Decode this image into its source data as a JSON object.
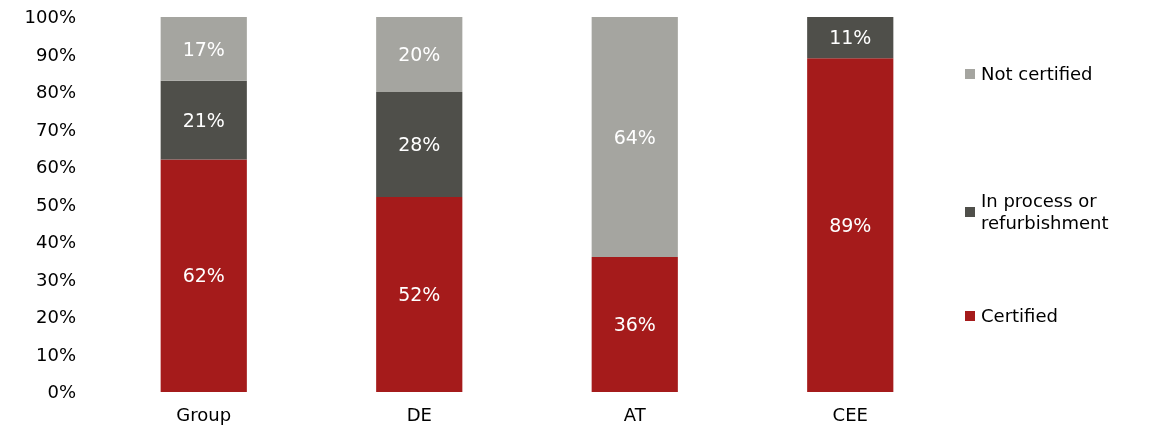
{
  "chart_data": {
    "type": "bar",
    "stacked": true,
    "categories": [
      "Group",
      "DE",
      "AT",
      "CEE"
    ],
    "ylim": [
      0,
      100
    ],
    "yticks": [
      {
        "value": 0,
        "label": "0%"
      },
      {
        "value": 10,
        "label": "10%"
      },
      {
        "value": 20,
        "label": "20%"
      },
      {
        "value": 30,
        "label": "30%"
      },
      {
        "value": 40,
        "label": "40%"
      },
      {
        "value": 50,
        "label": "50%"
      },
      {
        "value": 60,
        "label": "60%"
      },
      {
        "value": 70,
        "label": "70%"
      },
      {
        "value": 80,
        "label": "80%"
      },
      {
        "value": 90,
        "label": "90%"
      },
      {
        "value": 100,
        "label": "100%"
      }
    ],
    "series": [
      {
        "name": "Certified",
        "color": "#a51b1b",
        "values": [
          62,
          52,
          36,
          89
        ],
        "value_labels": [
          "62%",
          "52%",
          "36%",
          "89%"
        ]
      },
      {
        "name": "In process or refurbishment",
        "color": "#4f4f4a",
        "values": [
          21,
          28,
          null,
          11
        ],
        "value_labels": [
          "21%",
          "28%",
          null,
          "11%"
        ]
      },
      {
        "name": "Not certified",
        "color": "#a5a5a0",
        "values": [
          17,
          20,
          64,
          null
        ],
        "value_labels": [
          "17%",
          "20%",
          "64%",
          null
        ]
      }
    ],
    "grid": false,
    "legend": "right"
  }
}
